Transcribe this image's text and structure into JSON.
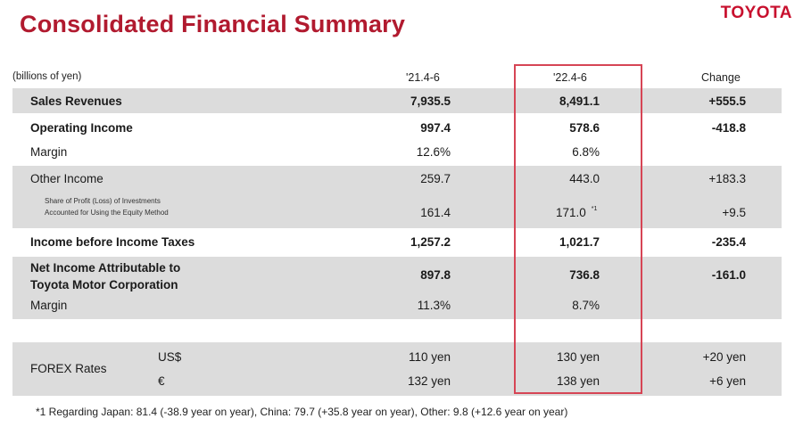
{
  "header": {
    "title": "Consolidated Financial Summary",
    "brand": "TOYOTA"
  },
  "table": {
    "unit": "(billions of yen)",
    "columns": [
      "'21.4-6",
      "'22.4-6",
      "Change"
    ],
    "rows": [
      {
        "label": "Sales Revenues",
        "v1": "7,935.5",
        "v2": "8,491.1",
        "v3": "+555.5"
      },
      {
        "label": "Operating Income",
        "v1": "997.4",
        "v2": "578.6",
        "v3": "-418.8"
      },
      {
        "label": "Margin",
        "v1": "12.6%",
        "v2": "6.8%",
        "v3": ""
      },
      {
        "label": "Other Income",
        "v1": "259.7",
        "v2": "443.0",
        "v3": "+183.3"
      },
      {
        "label_line1": "Share of Profit (Loss) of Investments",
        "label_line2": "Accounted for Using the Equity Method",
        "v1": "161.4",
        "v2": "171.0",
        "v2_note": "*1",
        "v3": "+9.5"
      },
      {
        "label": "Income before Income Taxes",
        "v1": "1,257.2",
        "v2": "1,021.7",
        "v3": "-235.4"
      },
      {
        "label_line1": "Net Income Attributable to",
        "label_line2": "Toyota Motor Corporation",
        "v1": "897.8",
        "v2": "736.8",
        "v3": "-161.0"
      },
      {
        "label": "Margin",
        "v1": "11.3%",
        "v2": "8.7%",
        "v3": ""
      }
    ],
    "forex": {
      "label": "FOREX Rates",
      "usd": {
        "currency": "US$",
        "v1": "110 yen",
        "v2": "130 yen",
        "v3": "+20 yen"
      },
      "eur": {
        "currency": "€",
        "v1": "132 yen",
        "v2": "138 yen",
        "v3": "+6 yen"
      }
    }
  },
  "footnote": "*1 Regarding Japan: 81.4 (-38.9 year on year), China: 79.7 (+35.8 year on year), Other: 9.8 (+12.6 year on year)",
  "colors": {
    "title": "#b11a2f",
    "brand": "#c8102e",
    "highlight_border": "#d64555",
    "band": "#dcdcdc"
  }
}
